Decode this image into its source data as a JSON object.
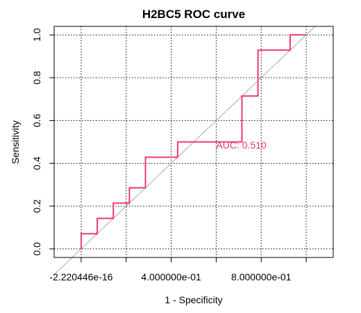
{
  "chart_data": {
    "type": "line",
    "title": "H2BC5 ROC curve",
    "xlabel": "1 - Specificity",
    "ylabel": "Sensitivity",
    "xlim": [
      -0.12,
      1.12
    ],
    "ylim": [
      -0.04,
      1.04
    ],
    "x_ticks": [
      {
        "value": 0.0,
        "label": "-2.220446e-16",
        "labeled": true
      },
      {
        "value": 0.2,
        "label": "",
        "labeled": false
      },
      {
        "value": 0.4,
        "label": "4.000000e-01",
        "labeled": true
      },
      {
        "value": 0.6,
        "label": "",
        "labeled": false
      },
      {
        "value": 0.8,
        "label": "8.000000e-01",
        "labeled": true
      },
      {
        "value": 1.0,
        "label": "",
        "labeled": false
      }
    ],
    "y_ticks": [
      {
        "value": 0.0,
        "label": "0.0"
      },
      {
        "value": 0.2,
        "label": "0.2"
      },
      {
        "value": 0.4,
        "label": "0.4"
      },
      {
        "value": 0.6,
        "label": "0.6"
      },
      {
        "value": 0.8,
        "label": "0.8"
      },
      {
        "value": 1.0,
        "label": "1.0"
      }
    ],
    "grid": true,
    "grid_style": "dotted",
    "series": [
      {
        "color": "#f0386b",
        "style": "step",
        "x": [
          0.0,
          0.0,
          0.0714,
          0.0714,
          0.1429,
          0.1429,
          0.2143,
          0.2143,
          0.2857,
          0.2857,
          0.4286,
          0.4286,
          0.7143,
          0.7143,
          0.7857,
          0.7857,
          0.9286,
          0.9286,
          1.0
        ],
        "y": [
          0.0,
          0.0714,
          0.0714,
          0.1429,
          0.1429,
          0.2143,
          0.2143,
          0.2857,
          0.2857,
          0.4286,
          0.4286,
          0.5,
          0.5,
          0.7143,
          0.7143,
          0.9286,
          0.9286,
          1.0,
          1.0
        ]
      }
    ],
    "reference_line": {
      "x": [
        -0.12,
        1.04
      ],
      "y": [
        -0.12,
        1.04
      ],
      "color": "#aaaaaa"
    },
    "annotation": {
      "text": "AUC: 0.510",
      "x": 0.6,
      "y": 0.47,
      "color": "#f0386b"
    }
  }
}
